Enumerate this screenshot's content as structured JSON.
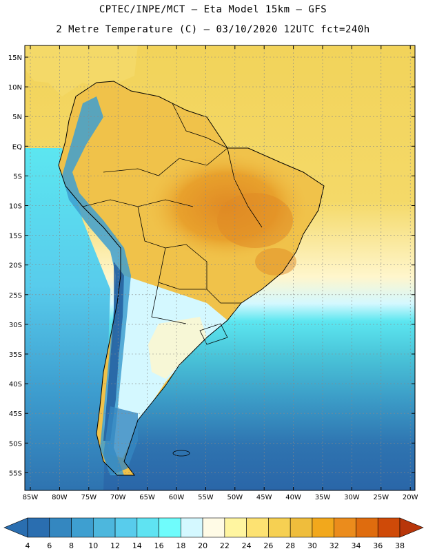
{
  "title": {
    "line1": "CPTEC/INPE/MCT –  Eta Model 15km – GFS",
    "line2": "2 Metre Temperature (C) – 03/10/2020 12UTC fct=240h"
  },
  "map": {
    "lat_ticks": [
      "15N",
      "10N",
      "5N",
      "EQ",
      "5S",
      "10S",
      "15S",
      "20S",
      "25S",
      "30S",
      "35S",
      "40S",
      "45S",
      "50S",
      "55S"
    ],
    "lon_ticks": [
      "85W",
      "80W",
      "75W",
      "70W",
      "65W",
      "60W",
      "55W",
      "50W",
      "45W",
      "40W",
      "35W",
      "30W",
      "25W",
      "20W"
    ],
    "colors": {
      "ocean_north": "#f2d35a",
      "land_warm": "#f0c24a",
      "land_hot": "#e8a12c",
      "land_hotter": "#e08a24",
      "ocean_mid": "#fff6cc",
      "ocean_cyan": "#5ce6f0",
      "ocean_teal": "#49c3d8",
      "ocean_blue": "#3b9ac6",
      "ocean_deep": "#2e73b0",
      "andes": "#1f5a9c",
      "coast": "#000000",
      "grid": "#888888"
    }
  },
  "colorbar": {
    "labels": [
      "4",
      "6",
      "8",
      "10",
      "12",
      "14",
      "16",
      "18",
      "20",
      "22",
      "24",
      "26",
      "28",
      "30",
      "32",
      "34",
      "36",
      "38"
    ],
    "colors": [
      "#2a6eb0",
      "#3487c0",
      "#3e9fd0",
      "#4db7dd",
      "#58ccec",
      "#5fe3f2",
      "#6ffcfc",
      "#d4f8ff",
      "#fffbe6",
      "#fff5a0",
      "#fde272",
      "#f6d052",
      "#efbd3c",
      "#f2a81c",
      "#eb8c1c",
      "#df6c0e",
      "#cf4a08"
    ],
    "low_arrow_color": "#2a6eb0",
    "high_arrow_color": "#b8360a"
  }
}
